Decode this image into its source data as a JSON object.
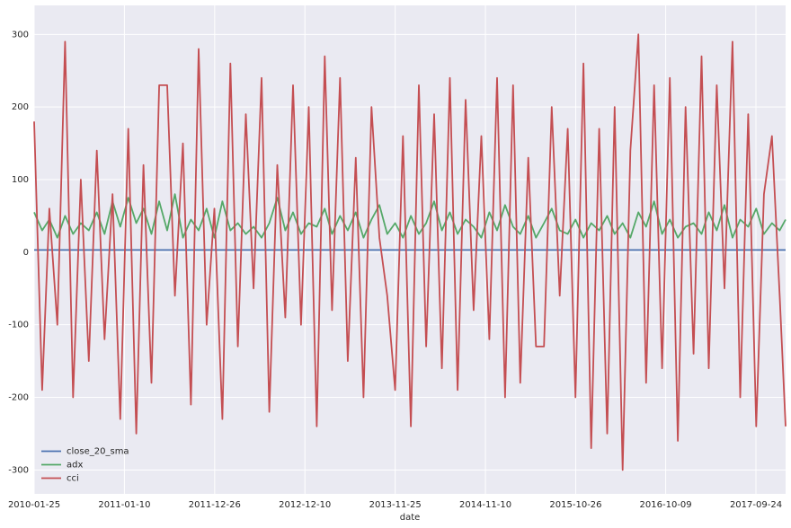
{
  "chart_data": {
    "type": "line",
    "xlabel": "date",
    "x": [
      "2010-01-25",
      "2010-02-25",
      "2010-03-25",
      "2010-04-25",
      "2010-05-25",
      "2010-06-25",
      "2010-07-25",
      "2010-08-25",
      "2010-09-25",
      "2010-10-25",
      "2010-11-25",
      "2010-12-25",
      "2011-01-25",
      "2011-02-25",
      "2011-03-25",
      "2011-04-25",
      "2011-05-25",
      "2011-06-25",
      "2011-07-25",
      "2011-08-25",
      "2011-09-25",
      "2011-10-25",
      "2011-11-25",
      "2011-12-25",
      "2012-01-25",
      "2012-02-25",
      "2012-03-25",
      "2012-04-25",
      "2012-05-25",
      "2012-06-25",
      "2012-07-25",
      "2012-08-25",
      "2012-09-25",
      "2012-10-25",
      "2012-11-25",
      "2012-12-25",
      "2013-01-25",
      "2013-02-25",
      "2013-03-25",
      "2013-04-25",
      "2013-05-25",
      "2013-06-25",
      "2013-07-25",
      "2013-08-25",
      "2013-09-25",
      "2013-10-25",
      "2013-11-25",
      "2013-12-25",
      "2014-01-25",
      "2014-02-25",
      "2014-03-25",
      "2014-04-25",
      "2014-05-25",
      "2014-06-25",
      "2014-07-25",
      "2014-08-25",
      "2014-09-25",
      "2014-10-25",
      "2014-11-25",
      "2014-12-25",
      "2015-01-25",
      "2015-02-25",
      "2015-03-25",
      "2015-04-25",
      "2015-05-25",
      "2015-06-25",
      "2015-07-25",
      "2015-08-25",
      "2015-09-25",
      "2015-10-25",
      "2015-11-25",
      "2015-12-25",
      "2016-01-25",
      "2016-02-25",
      "2016-03-25",
      "2016-04-25",
      "2016-05-25",
      "2016-06-25",
      "2016-07-25",
      "2016-08-25",
      "2016-09-25",
      "2016-10-25",
      "2016-11-25",
      "2016-12-25",
      "2017-01-25",
      "2017-02-25",
      "2017-03-25",
      "2017-04-25",
      "2017-05-25",
      "2017-06-25",
      "2017-07-25",
      "2017-08-25",
      "2017-09-25",
      "2017-10-25",
      "2017-11-25",
      "2017-12-25",
      "2018-01-17"
    ],
    "series": [
      {
        "name": "close_20_sma",
        "color": "#4c72b0",
        "values": [
          3,
          3,
          3,
          3,
          3,
          3,
          3,
          3,
          3,
          3,
          3,
          3,
          3,
          3,
          3,
          3,
          3,
          3,
          3,
          3,
          3,
          3,
          3,
          3,
          3,
          3,
          3,
          3,
          3,
          3,
          3,
          3,
          3,
          3,
          3,
          3,
          3,
          3,
          3,
          3,
          3,
          3,
          3,
          3,
          3,
          3,
          3,
          3,
          3,
          3,
          3,
          3,
          3,
          3,
          3,
          3,
          3,
          3,
          3,
          3,
          3,
          3,
          3,
          3,
          3,
          3,
          3,
          3,
          3,
          3,
          3,
          3,
          3,
          3,
          3,
          3,
          3,
          3,
          3,
          3,
          3,
          3,
          3,
          3,
          3,
          3,
          3,
          3,
          3,
          3,
          3,
          3,
          3,
          3,
          3,
          3,
          3
        ]
      },
      {
        "name": "adx",
        "color": "#55a868",
        "values": [
          55,
          30,
          45,
          20,
          50,
          25,
          40,
          30,
          55,
          25,
          70,
          35,
          75,
          40,
          60,
          25,
          70,
          30,
          80,
          20,
          45,
          30,
          60,
          20,
          70,
          30,
          40,
          25,
          35,
          20,
          40,
          75,
          30,
          55,
          25,
          40,
          35,
          60,
          25,
          50,
          30,
          55,
          20,
          45,
          65,
          25,
          40,
          20,
          50,
          25,
          40,
          70,
          30,
          55,
          25,
          45,
          35,
          20,
          55,
          30,
          65,
          35,
          25,
          50,
          20,
          40,
          60,
          30,
          25,
          45,
          20,
          40,
          30,
          50,
          25,
          40,
          20,
          55,
          35,
          70,
          25,
          45,
          20,
          35,
          40,
          25,
          55,
          30,
          65,
          20,
          45,
          35,
          60,
          25,
          40,
          30,
          45
        ]
      },
      {
        "name": "cci",
        "color": "#c44e52",
        "values": [
          180,
          -190,
          60,
          -100,
          290,
          -200,
          100,
          -150,
          140,
          -120,
          80,
          -230,
          170,
          -250,
          120,
          -180,
          230,
          230,
          -60,
          150,
          -210,
          280,
          -100,
          60,
          -230,
          260,
          -130,
          190,
          -50,
          240,
          -220,
          120,
          -90,
          230,
          -100,
          200,
          -240,
          270,
          -80,
          240,
          -150,
          130,
          -200,
          200,
          20,
          -60,
          -190,
          160,
          -240,
          230,
          -130,
          190,
          -160,
          240,
          -190,
          210,
          -80,
          160,
          -120,
          240,
          -200,
          230,
          -180,
          130,
          -130,
          -130,
          200,
          -60,
          170,
          -200,
          260,
          -270,
          170,
          -250,
          200,
          -300,
          140,
          300,
          -180,
          230,
          -160,
          240,
          -260,
          200,
          -140,
          270,
          -160,
          230,
          -50,
          290,
          -200,
          190,
          -240,
          80,
          160,
          -60,
          -240
        ]
      }
    ],
    "xlim": [
      "2010-01-25",
      "2018-01-17"
    ],
    "xticks": [
      "2010-01-25",
      "2011-01-10",
      "2011-12-26",
      "2012-12-10",
      "2013-11-25",
      "2014-11-10",
      "2015-10-26",
      "2016-10-09",
      "2017-09-24"
    ],
    "ylim": [
      -333,
      340
    ],
    "yticks": [
      -300,
      -200,
      -100,
      0,
      100,
      200,
      300
    ],
    "grid": true,
    "legend": "lower left"
  }
}
